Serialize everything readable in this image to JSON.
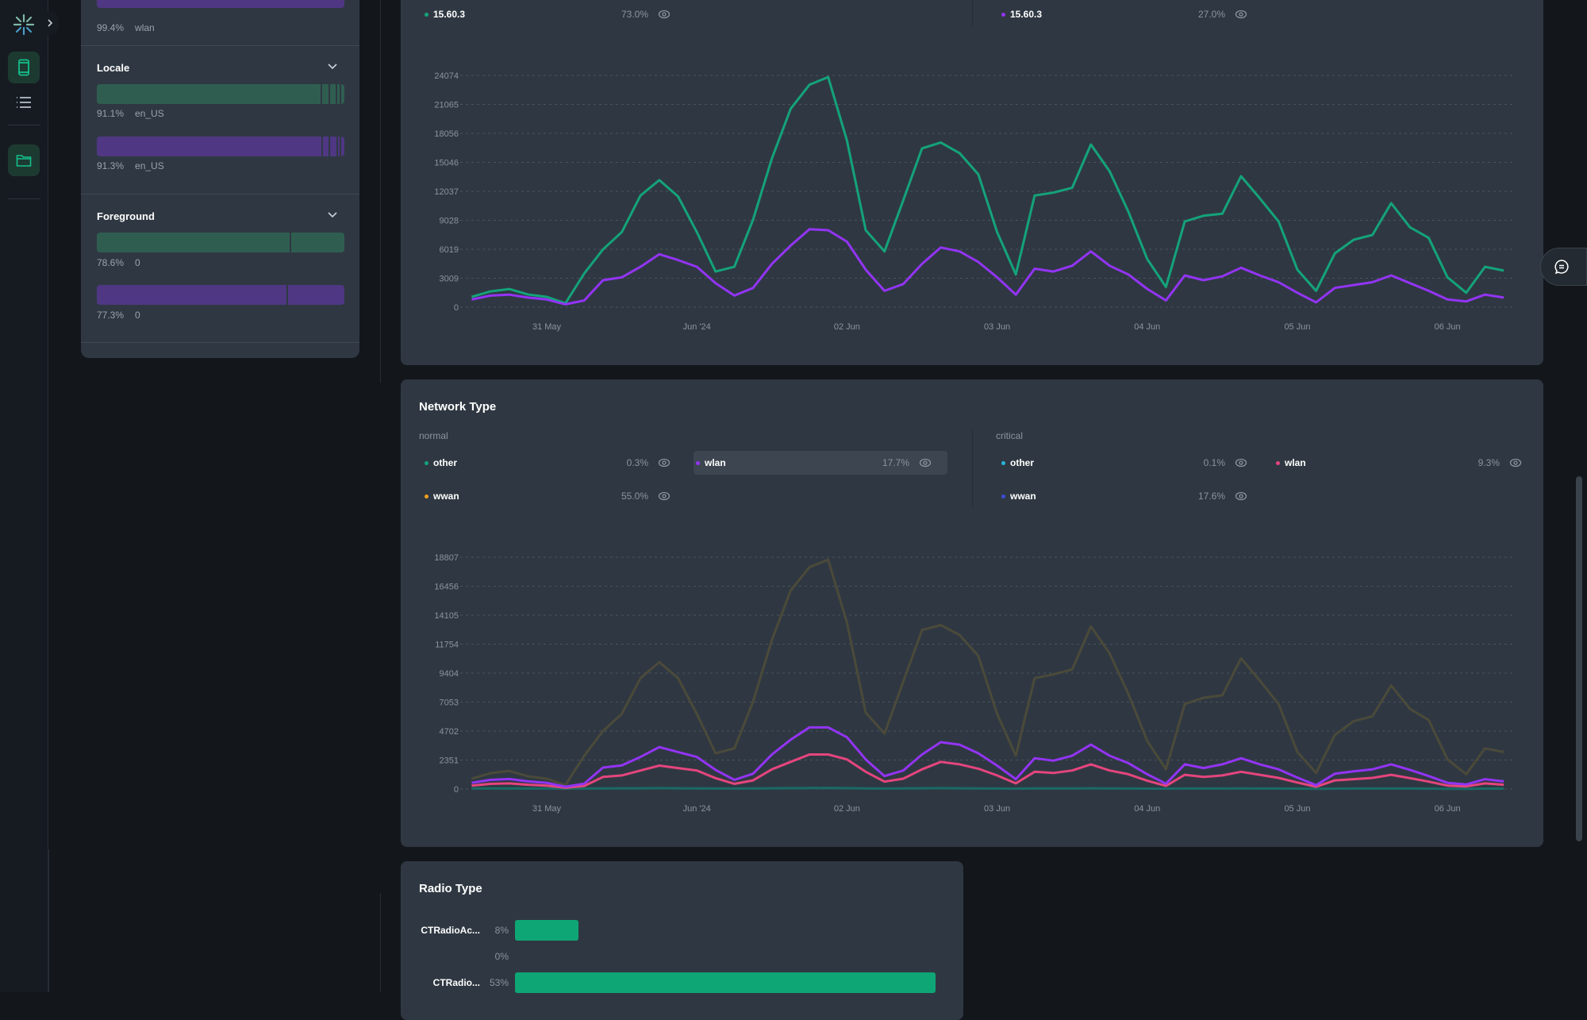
{
  "colors": {
    "green": "#14a37a",
    "purple": "#9334f5",
    "pink": "#e5457e",
    "teal": "#1aa5a0",
    "orange": "#f0a020",
    "blue": "#3b4bd8",
    "wwan_dim": "#4b4a3a",
    "cyan": "#26b5d9"
  },
  "rail": {
    "icons": [
      "logo-icon",
      "phone-icon",
      "list-icon",
      "folder-icon"
    ]
  },
  "filters": {
    "top": {
      "pct": "99.4%",
      "value": "wlan"
    },
    "sections": [
      {
        "title": "Locale",
        "rows": [
          {
            "pct": "91.1%",
            "value": "en_US",
            "share": 91.1
          },
          {
            "pct": "91.3%",
            "value": "en_US",
            "share": 91.3
          }
        ]
      },
      {
        "title": "Foreground",
        "rows": [
          {
            "pct": "78.6%",
            "value": "0",
            "share": 78.6
          },
          {
            "pct": "77.3%",
            "value": "0",
            "share": 77.3
          }
        ]
      }
    ]
  },
  "version_chart": {
    "legend": {
      "normal": [
        {
          "name": "15.60.3",
          "pct": "73.0%"
        }
      ],
      "critical": [
        {
          "name": "15.60.3",
          "pct": "27.0%"
        }
      ]
    }
  },
  "network_chart": {
    "title": "Network Type",
    "normal_label": "normal",
    "critical_label": "critical",
    "legend": {
      "normal": [
        {
          "name": "other",
          "pct": "0.3%"
        },
        {
          "name": "wlan",
          "pct": "17.7%"
        },
        {
          "name": "wwan",
          "pct": "55.0%"
        }
      ],
      "critical": [
        {
          "name": "other",
          "pct": "0.1%"
        },
        {
          "name": "wlan",
          "pct": "9.3%"
        },
        {
          "name": "wwan",
          "pct": "17.6%"
        }
      ]
    }
  },
  "radio_chart": {
    "title": "Radio Type",
    "rows": [
      {
        "label": "CTRadioAc...",
        "pct": "8%",
        "value": 8
      },
      {
        "label": "",
        "pct": "0%",
        "value": 0
      },
      {
        "label": "CTRadio...",
        "pct": "53%",
        "value": 53
      }
    ]
  },
  "chart_data": [
    {
      "type": "line",
      "y_ticks": [
        "0",
        "3009",
        "6019",
        "9028",
        "12037",
        "15046",
        "18056",
        "21065",
        "24074"
      ],
      "ylim": [
        0,
        24074
      ],
      "x_ticks": [
        {
          "label": "31 May",
          "date": "2024-05-31T00:00"
        },
        {
          "label": "Jun '24",
          "date": "2024-06-01T00:00"
        },
        {
          "label": "02 Jun",
          "date": "2024-06-02T00:00"
        },
        {
          "label": "03 Jun",
          "date": "2024-06-03T00:00"
        },
        {
          "label": "04 Jun",
          "date": "2024-06-04T00:00"
        },
        {
          "label": "05 Jun",
          "date": "2024-06-05T00:00"
        },
        {
          "label": "06 Jun",
          "date": "2024-06-06T00:00"
        }
      ],
      "grid": true,
      "x": [
        "2024-05-30T12:00",
        "2024-05-30T15:00",
        "2024-05-30T18:00",
        "2024-05-30T21:00",
        "2024-05-31T00:00",
        "2024-05-31T03:00",
        "2024-05-31T06:00",
        "2024-05-31T09:00",
        "2024-05-31T12:00",
        "2024-05-31T15:00",
        "2024-05-31T18:00",
        "2024-05-31T21:00",
        "2024-06-01T00:00",
        "2024-06-01T03:00",
        "2024-06-01T06:00",
        "2024-06-01T09:00",
        "2024-06-01T12:00",
        "2024-06-01T15:00",
        "2024-06-01T18:00",
        "2024-06-01T21:00",
        "2024-06-02T00:00",
        "2024-06-02T03:00",
        "2024-06-02T06:00",
        "2024-06-02T09:00",
        "2024-06-02T12:00",
        "2024-06-02T15:00",
        "2024-06-02T18:00",
        "2024-06-02T21:00",
        "2024-06-03T00:00",
        "2024-06-03T03:00",
        "2024-06-03T06:00",
        "2024-06-03T09:00",
        "2024-06-03T12:00",
        "2024-06-03T15:00",
        "2024-06-03T18:00",
        "2024-06-03T21:00",
        "2024-06-04T00:00",
        "2024-06-04T03:00",
        "2024-06-04T06:00",
        "2024-06-04T09:00",
        "2024-06-04T12:00",
        "2024-06-04T15:00",
        "2024-06-04T18:00",
        "2024-06-04T21:00",
        "2024-06-05T00:00",
        "2024-06-05T03:00",
        "2024-06-05T06:00",
        "2024-06-05T09:00",
        "2024-06-05T12:00",
        "2024-06-05T15:00",
        "2024-06-05T18:00",
        "2024-06-05T21:00",
        "2024-06-06T00:00",
        "2024-06-06T03:00",
        "2024-06-06T06:00",
        "2024-06-06T09:00"
      ],
      "series": [
        {
          "name": "15.60.3",
          "group": "normal",
          "color": "#14a37a",
          "values": [
            1070,
            1640,
            1890,
            1320,
            1070,
            410,
            3500,
            6000,
            7800,
            11600,
            13200,
            11500,
            7800,
            3700,
            4200,
            9100,
            15450,
            20600,
            23100,
            23900,
            17300,
            8000,
            5800,
            11100,
            16500,
            17100,
            16000,
            13800,
            7800,
            3400,
            11600,
            11900,
            12400,
            16900,
            14100,
            9900,
            5000,
            2100,
            8900,
            9500,
            9700,
            13600,
            11300,
            8900,
            3900,
            1700,
            5600,
            7000,
            7500,
            10800,
            8300,
            7200,
            3100,
            1500,
            4200,
            3800
          ]
        },
        {
          "name": "15.60.3",
          "group": "critical",
          "color": "#9334f5",
          "values": [
            800,
            1200,
            1300,
            1000,
            800,
            300,
            700,
            2800,
            3100,
            4200,
            5500,
            4900,
            4200,
            2500,
            1200,
            2000,
            4500,
            6400,
            8100,
            8000,
            6800,
            3900,
            1700,
            2400,
            4500,
            6200,
            5800,
            4700,
            3100,
            1300,
            4000,
            3700,
            4300,
            5800,
            4300,
            3400,
            1900,
            700,
            3300,
            2800,
            3200,
            4100,
            3300,
            2600,
            1500,
            500,
            2000,
            2300,
            2600,
            3300,
            2500,
            1700,
            800,
            600,
            1300,
            1000
          ]
        }
      ]
    },
    {
      "type": "line",
      "title": "Network Type",
      "y_ticks": [
        "0",
        "2351",
        "4702",
        "7053",
        "9404",
        "11754",
        "14105",
        "16456",
        "18807"
      ],
      "ylim": [
        0,
        18807
      ],
      "x_ticks": [
        {
          "label": "31 May",
          "date": "2024-05-31T00:00"
        },
        {
          "label": "Jun '24",
          "date": "2024-06-01T00:00"
        },
        {
          "label": "02 Jun",
          "date": "2024-06-02T00:00"
        },
        {
          "label": "03 Jun",
          "date": "2024-06-03T00:00"
        },
        {
          "label": "04 Jun",
          "date": "2024-06-04T00:00"
        },
        {
          "label": "05 Jun",
          "date": "2024-06-05T00:00"
        },
        {
          "label": "06 Jun",
          "date": "2024-06-06T00:00"
        }
      ],
      "grid": true,
      "x": [
        "2024-05-30T12:00",
        "2024-05-30T15:00",
        "2024-05-30T18:00",
        "2024-05-30T21:00",
        "2024-05-31T00:00",
        "2024-05-31T03:00",
        "2024-05-31T06:00",
        "2024-05-31T09:00",
        "2024-05-31T12:00",
        "2024-05-31T15:00",
        "2024-05-31T18:00",
        "2024-05-31T21:00",
        "2024-06-01T00:00",
        "2024-06-01T03:00",
        "2024-06-01T06:00",
        "2024-06-01T09:00",
        "2024-06-01T12:00",
        "2024-06-01T15:00",
        "2024-06-01T18:00",
        "2024-06-01T21:00",
        "2024-06-02T00:00",
        "2024-06-02T03:00",
        "2024-06-02T06:00",
        "2024-06-02T09:00",
        "2024-06-02T12:00",
        "2024-06-02T15:00",
        "2024-06-02T18:00",
        "2024-06-02T21:00",
        "2024-06-03T00:00",
        "2024-06-03T03:00",
        "2024-06-03T06:00",
        "2024-06-03T09:00",
        "2024-06-03T12:00",
        "2024-06-03T15:00",
        "2024-06-03T18:00",
        "2024-06-03T21:00",
        "2024-06-04T00:00",
        "2024-06-04T03:00",
        "2024-06-04T06:00",
        "2024-06-04T09:00",
        "2024-06-04T12:00",
        "2024-06-04T15:00",
        "2024-06-04T18:00",
        "2024-06-04T21:00",
        "2024-06-05T00:00",
        "2024-06-05T03:00",
        "2024-06-05T06:00",
        "2024-06-05T09:00",
        "2024-06-05T12:00",
        "2024-06-05T15:00",
        "2024-06-05T18:00",
        "2024-06-05T21:00",
        "2024-06-06T00:00",
        "2024-06-06T03:00",
        "2024-06-06T06:00",
        "2024-06-06T09:00"
      ],
      "series": [
        {
          "name": "wwan",
          "group": "normal",
          "color": "#4b4a3a",
          "values": [
            830,
            1280,
            1470,
            1030,
            830,
            320,
            2700,
            4700,
            6100,
            9000,
            10300,
            9000,
            6100,
            2900,
            3300,
            7100,
            12100,
            16100,
            18000,
            18600,
            13500,
            6200,
            4500,
            8700,
            12900,
            13300,
            12500,
            10800,
            6100,
            2700,
            9000,
            9300,
            9700,
            13200,
            11000,
            7700,
            3900,
            1600,
            6900,
            7400,
            7600,
            10600,
            8800,
            6900,
            3000,
            1300,
            4400,
            5500,
            5900,
            8400,
            6500,
            5600,
            2400,
            1200,
            3300,
            3000
          ]
        },
        {
          "name": "other",
          "group": "normal",
          "color": "#1a6a66",
          "values": [
            40,
            50,
            50,
            40,
            40,
            30,
            40,
            50,
            60,
            60,
            70,
            60,
            50,
            40,
            40,
            50,
            60,
            70,
            80,
            80,
            70,
            50,
            40,
            50,
            60,
            70,
            60,
            50,
            40,
            30,
            50,
            50,
            50,
            60,
            50,
            40,
            30,
            30,
            40,
            40,
            40,
            50,
            40,
            40,
            30,
            20,
            30,
            40,
            40,
            40,
            40,
            30,
            20,
            20,
            30,
            30
          ]
        },
        {
          "name": "wlan",
          "group": "critical",
          "color": "#e5457e",
          "values": [
            280,
            420,
            460,
            350,
            280,
            100,
            250,
            980,
            1100,
            1500,
            1900,
            1700,
            1500,
            880,
            420,
            700,
            1600,
            2200,
            2800,
            2800,
            2400,
            1400,
            600,
            840,
            1600,
            2200,
            2000,
            1650,
            1100,
            460,
            1400,
            1300,
            1500,
            2000,
            1500,
            1200,
            670,
            250,
            1150,
            980,
            1100,
            1400,
            1150,
            900,
            530,
            180,
            700,
            800,
            900,
            1150,
            880,
            600,
            280,
            210,
            460,
            350
          ]
        },
        {
          "name": "wlan",
          "group": "normal",
          "color": "#9334f5",
          "values": [
            500,
            740,
            810,
            620,
            500,
            190,
            430,
            1740,
            1920,
            2600,
            3400,
            3000,
            2600,
            1550,
            740,
            1240,
            2800,
            4000,
            5000,
            5000,
            4200,
            2400,
            1050,
            1500,
            2800,
            3800,
            3600,
            2900,
            1900,
            800,
            2500,
            2300,
            2700,
            3600,
            2700,
            2100,
            1200,
            430,
            2000,
            1700,
            2000,
            2500,
            2000,
            1600,
            930,
            310,
            1240,
            1430,
            1600,
            2000,
            1550,
            1050,
            500,
            370,
            800,
            620
          ]
        }
      ]
    },
    {
      "type": "bar",
      "title": "Radio Type",
      "categories": [
        "CTRadioAc...",
        "",
        "CTRadio..."
      ],
      "values": [
        8,
        0,
        53
      ]
    }
  ]
}
